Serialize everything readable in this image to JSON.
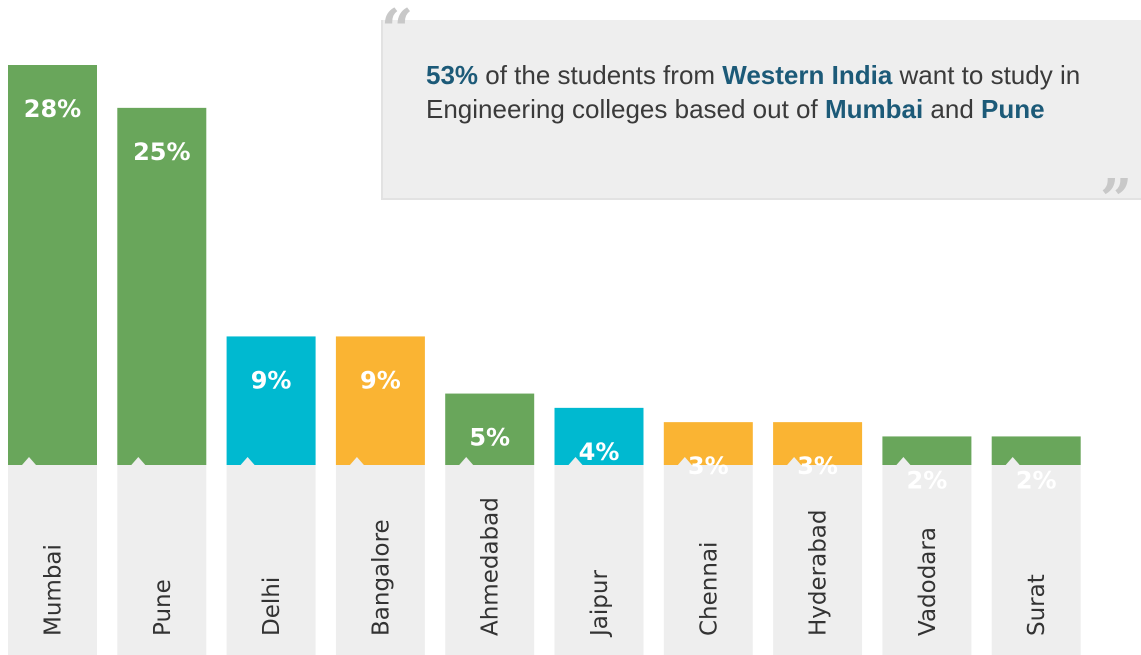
{
  "quote": {
    "highlight_1": "53%",
    "text_1": " of the students from ",
    "highlight_2": "Western India",
    "text_2": " want to study in Engineering colleges based out of ",
    "highlight_3": "Mumbai",
    "text_3": " and ",
    "highlight_4": "Pune",
    "open_mark": "“",
    "close_mark": "”"
  },
  "colors": {
    "green": "#69a65b",
    "cyan": "#00b9d0",
    "orange": "#fab433",
    "label_bg": "#eeeeee",
    "highlight": "#1c5a78"
  },
  "chart_data": {
    "type": "bar",
    "title": "",
    "xlabel": "",
    "ylabel": "",
    "ylim": [
      0,
      28
    ],
    "grid": false,
    "categories": [
      "Mumbai",
      "Pune",
      "Delhi",
      "Bangalore",
      "Ahmedabad",
      "Jaipur",
      "Chennai",
      "Hyderabad",
      "Vadodara",
      "Surat"
    ],
    "values": [
      28,
      25,
      9,
      9,
      5,
      4,
      3,
      3,
      2,
      2
    ],
    "value_labels": [
      "28%",
      "25%",
      "9%",
      "9%",
      "5%",
      "4%",
      "3%",
      "3%",
      "2%",
      "2%"
    ],
    "bar_colors": [
      "#69a65b",
      "#69a65b",
      "#00b9d0",
      "#fab433",
      "#69a65b",
      "#00b9d0",
      "#fab433",
      "#fab433",
      "#69a65b",
      "#69a65b"
    ]
  }
}
